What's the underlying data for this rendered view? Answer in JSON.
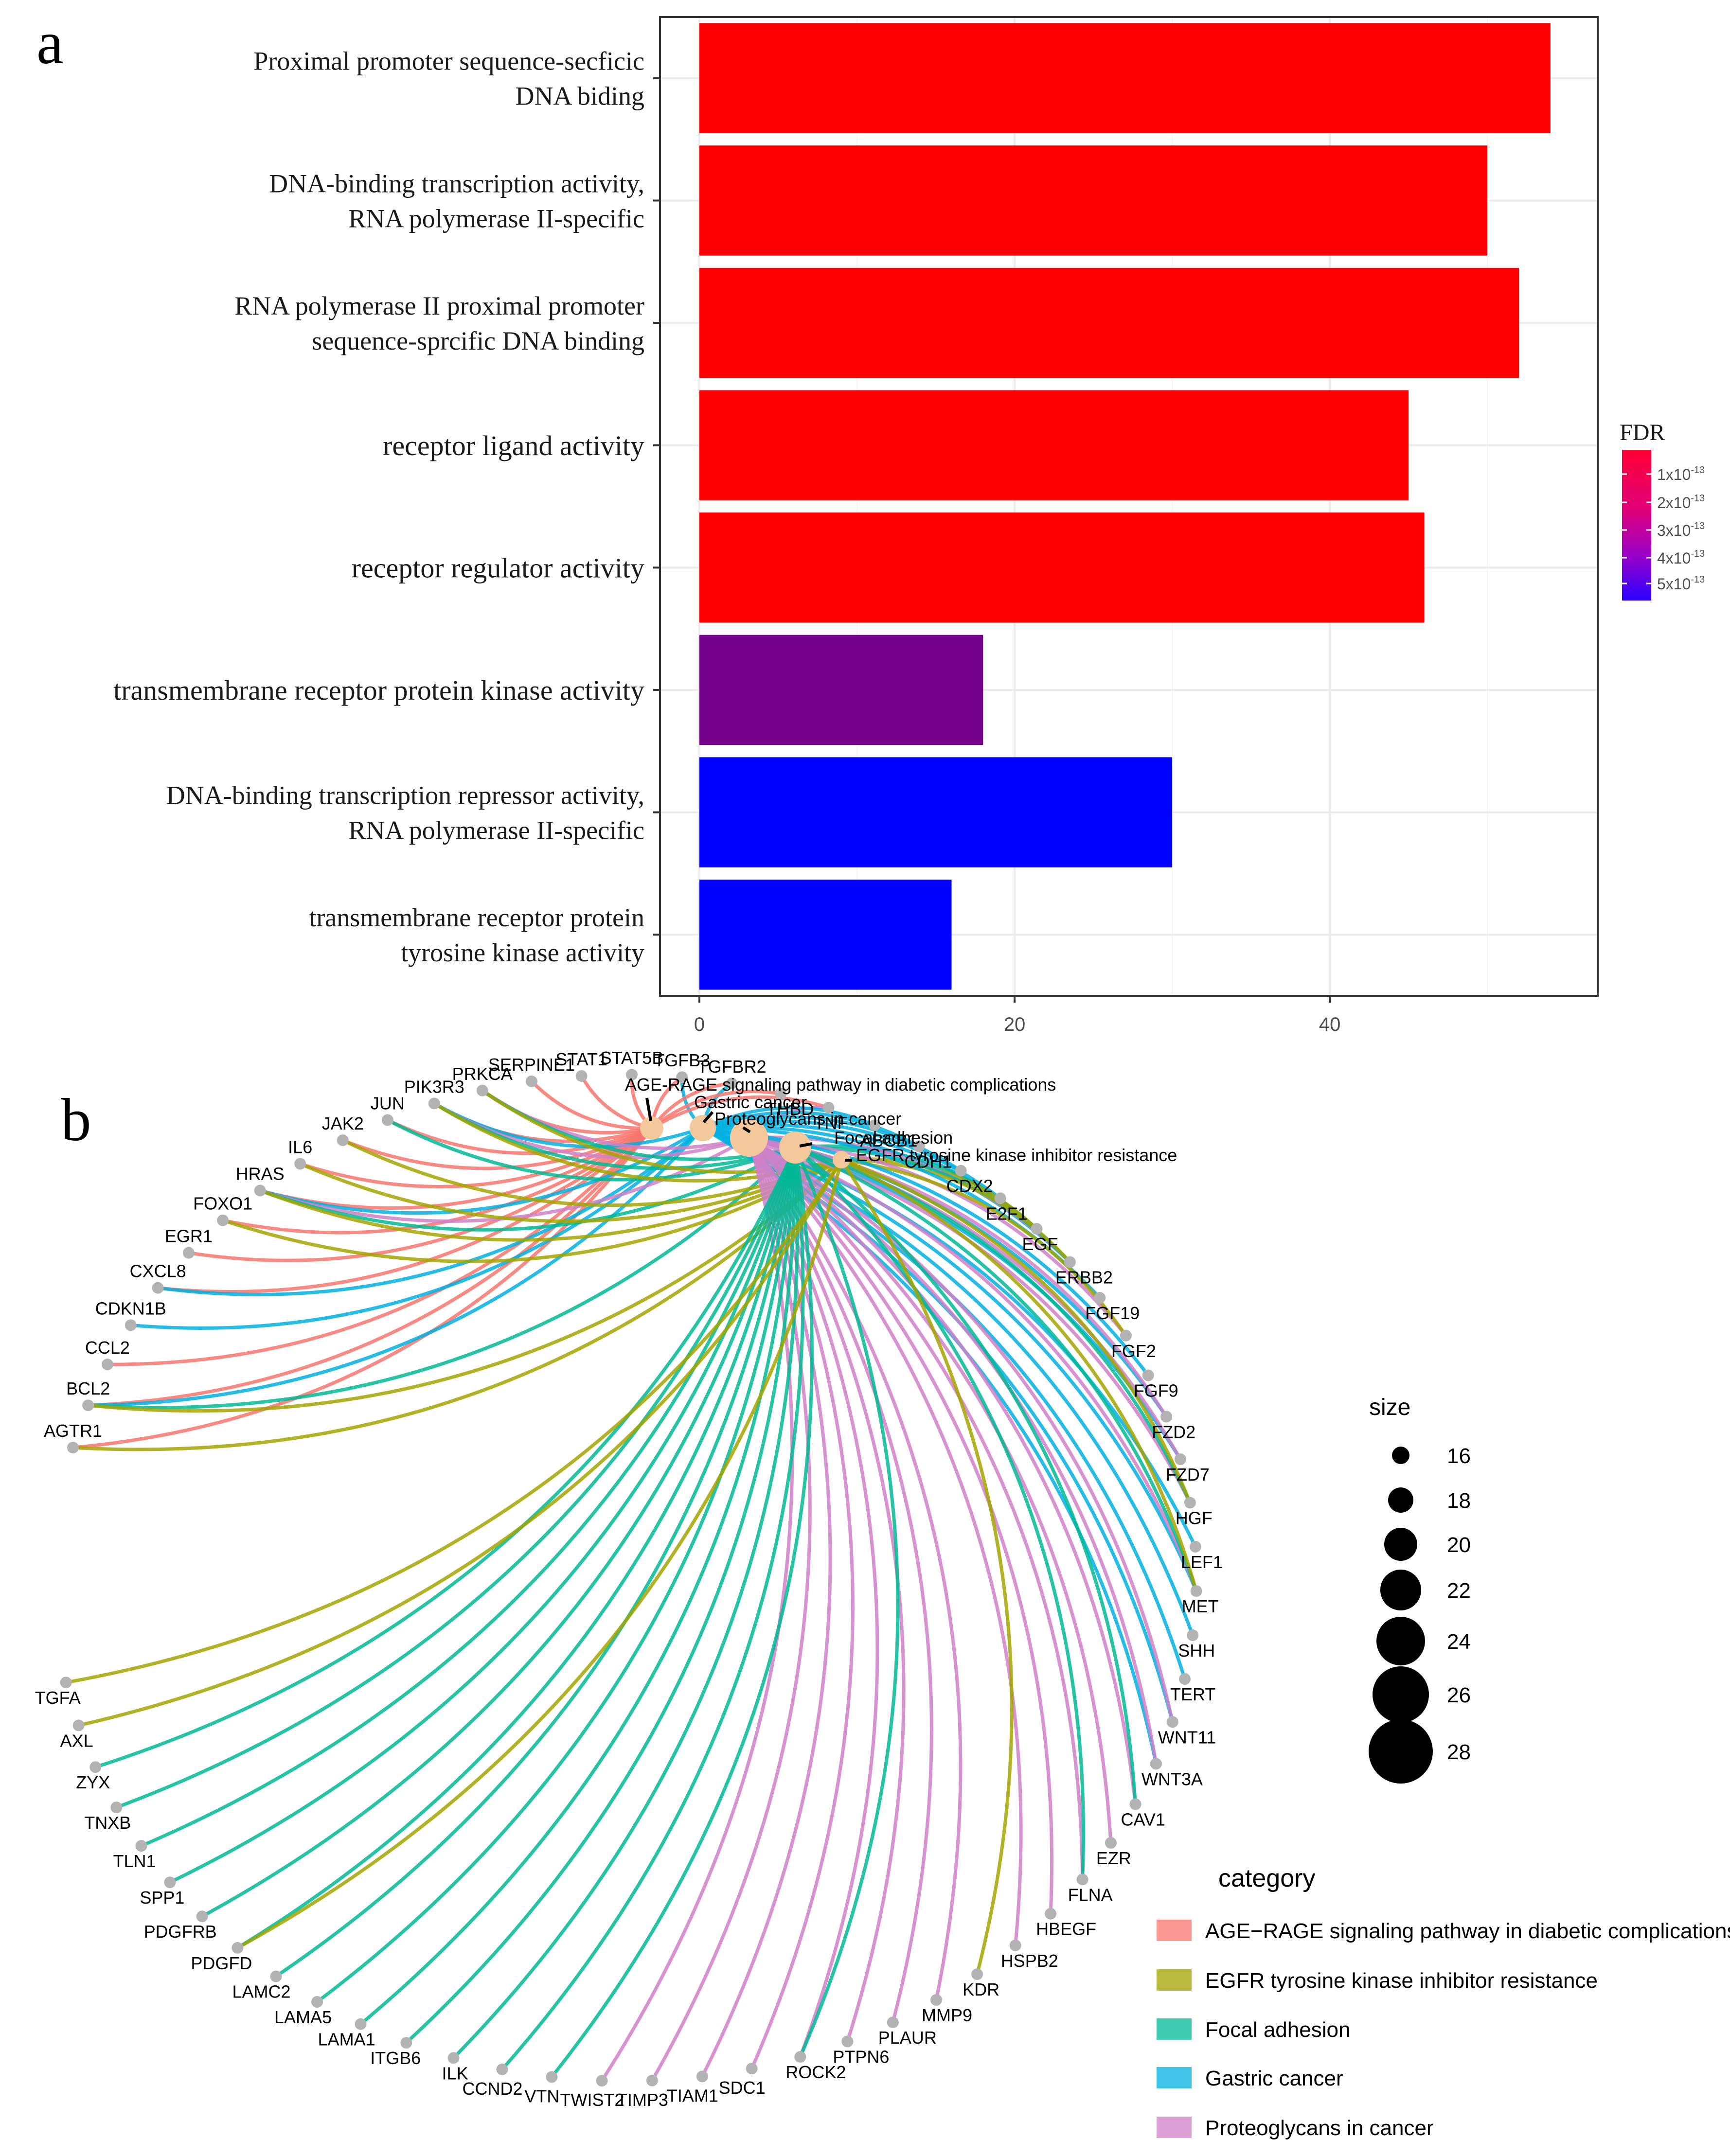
{
  "panel_a_label": "a",
  "panel_b_label": "b",
  "colors": {
    "red": "#ff0000",
    "magenta": "#cc00cc",
    "blue": "#0000ff",
    "node": "#b3b3b3",
    "center": "#f4c89a"
  },
  "chart_data": [
    {
      "type": "bar",
      "orientation": "horizontal",
      "title": "",
      "categories": [
        [
          "Proximal promoter sequence-secficic",
          "DNA biding"
        ],
        [
          "DNA-binding transcription activity,",
          "RNA polymerase II-specific"
        ],
        [
          "RNA polymerase II proximal promoter",
          "sequence-sprcific DNA binding"
        ],
        [
          "receptor ligand activity"
        ],
        [
          "receptor regulator activity"
        ],
        [
          "transmembrane receptor protein kinase activity"
        ],
        [
          "DNA-binding transcription repressor activity,",
          "RNA polymerase II-specific"
        ],
        [
          "transmembrane receptor protein",
          "tyrosine kinase activity"
        ]
      ],
      "values": [
        54,
        50,
        52,
        45,
        46,
        18,
        30,
        16
      ],
      "fdr": [
        1e-15,
        1e-15,
        1e-15,
        1e-15,
        1e-15,
        3e-13,
        5.5e-13,
        5.5e-13
      ],
      "xlim": [
        -2.5,
        57
      ],
      "xticks": [
        "0",
        "20",
        "40"
      ],
      "legend": {
        "title": "FDR",
        "labels": [
          "1x10",
          "2x10",
          "3x10",
          "4x10",
          "5x10"
        ],
        "exponent": "-13",
        "position": "right"
      }
    },
    {
      "type": "network",
      "title": "",
      "categories": [
        {
          "name": "AGE−RAGE signaling pathway in diabetic complications",
          "label": "AGE-RAGE signaling pathway in diabetic complications",
          "color": "#f8766d",
          "size": 17
        },
        {
          "name": "Gastric cancer",
          "label": "Gastric cancer",
          "color": "#00b0e0",
          "size": 18
        },
        {
          "name": "Proteoglycans in cancer",
          "label": "Proteoglycans in cancer",
          "color": "#d080c8",
          "size": 22
        },
        {
          "name": "Focal adhesion",
          "label": "Focal adhesion",
          "color": "#00b894",
          "size": 20
        },
        {
          "name": "EGFR tyrosine kinase inhibitor resistance",
          "label": "EGFR tyrosine kinase inhibitor resistance",
          "color": "#a3a500",
          "size": 15
        }
      ],
      "genes": [
        "AGTR1",
        "BCL2",
        "CCL2",
        "CDKN1B",
        "CXCL8",
        "EGR1",
        "FOXO1",
        "HRAS",
        "IL6",
        "JAK2",
        "JUN",
        "PIK3R3",
        "PRKCA",
        "SERPINE1",
        "STAT1",
        "STAT5B",
        "TGFB3",
        "TGFBR2",
        "THBD",
        "TNF",
        "ABCB1",
        "CDH1",
        "CDX2",
        "E2F1",
        "EGF",
        "ERBB2",
        "FGF19",
        "FGF2",
        "FGF9",
        "FZD2",
        "FZD7",
        "HGF",
        "LEF1",
        "MET",
        "SHH",
        "TERT",
        "WNT11",
        "WNT3A",
        "CAV1",
        "EZR",
        "FLNA",
        "HBEGF",
        "HSPB2",
        "KDR",
        "MMP9",
        "PLAUR",
        "PTPN6",
        "ROCK2",
        "SDC1",
        "TIAM1",
        "TIMP3",
        "TWIST2",
        "VTN",
        "CCND2",
        "ILK",
        "ITGB6",
        "LAMA1",
        "LAMA5",
        "LAMC2",
        "PDGFD",
        "PDGFRB",
        "SPP1",
        "TLN1",
        "TNXB",
        "ZYX",
        "AXL",
        "TGFA"
      ],
      "edges": {
        "AGTR1": [
          0,
          4
        ],
        "BCL2": [
          0,
          1,
          3,
          4
        ],
        "CCL2": [
          0
        ],
        "CDKN1B": [
          1
        ],
        "CXCL8": [
          0,
          1
        ],
        "EGR1": [
          0
        ],
        "FOXO1": [
          0,
          4
        ],
        "HRAS": [
          0,
          1,
          2,
          3,
          4
        ],
        "IL6": [
          0,
          4
        ],
        "JAK2": [
          0,
          4
        ],
        "JUN": [
          0,
          3
        ],
        "PIK3R3": [
          0,
          1,
          2,
          3,
          4
        ],
        "PRKCA": [
          0,
          2,
          3,
          4
        ],
        "SERPINE1": [
          0
        ],
        "STAT1": [
          0
        ],
        "STAT5B": [
          0
        ],
        "TGFB3": [
          0,
          1
        ],
        "TGFBR2": [
          0,
          1
        ],
        "THBD": [
          0
        ],
        "TNF": [
          0,
          2
        ],
        "ABCB1": [
          1
        ],
        "CDH1": [
          1
        ],
        "CDX2": [
          1
        ],
        "E2F1": [
          1
        ],
        "EGF": [
          1,
          3,
          4
        ],
        "ERBB2": [
          1,
          2,
          3,
          4
        ],
        "FGF19": [
          1
        ],
        "FGF2": [
          2,
          4
        ],
        "FGF9": [
          1
        ],
        "FZD2": [
          1,
          2
        ],
        "FZD7": [
          1,
          2
        ],
        "HGF": [
          2,
          3,
          4
        ],
        "LEF1": [
          1
        ],
        "MET": [
          1,
          2,
          3,
          4
        ],
        "SHH": [
          1
        ],
        "TERT": [
          1
        ],
        "WNT11": [
          1,
          2
        ],
        "WNT3A": [
          1,
          2
        ],
        "CAV1": [
          2,
          3
        ],
        "EZR": [
          2
        ],
        "FLNA": [
          2,
          3
        ],
        "HBEGF": [
          2
        ],
        "HSPB2": [
          2
        ],
        "KDR": [
          4
        ],
        "MMP9": [
          2
        ],
        "PLAUR": [
          2
        ],
        "PTPN6": [
          2
        ],
        "ROCK2": [
          2,
          3
        ],
        "SDC1": [
          2
        ],
        "TIAM1": [
          2
        ],
        "TIMP3": [
          2
        ],
        "TWIST2": [
          2
        ],
        "VTN": [
          3
        ],
        "CCND2": [
          3
        ],
        "ILK": [
          3
        ],
        "ITGB6": [
          3
        ],
        "LAMA1": [
          3
        ],
        "LAMA5": [
          3
        ],
        "LAMC2": [
          3
        ],
        "PDGFD": [
          3,
          4
        ],
        "PDGFRB": [
          3
        ],
        "SPP1": [
          3
        ],
        "TLN1": [
          3
        ],
        "TNXB": [
          3
        ],
        "ZYX": [
          3
        ],
        "AXL": [
          4
        ],
        "TGFA": [
          4
        ]
      },
      "size_legend": {
        "title": "size",
        "values": [
          16,
          18,
          20,
          22,
          24,
          26,
          28
        ]
      },
      "category_legend_title": "category",
      "category_legend_order": [
        "AGE−RAGE signaling pathway in diabetic complications",
        "EGFR tyrosine kinase inhibitor resistance",
        "Focal adhesion",
        "Gastric cancer",
        "Proteoglycans in cancer"
      ]
    }
  ]
}
